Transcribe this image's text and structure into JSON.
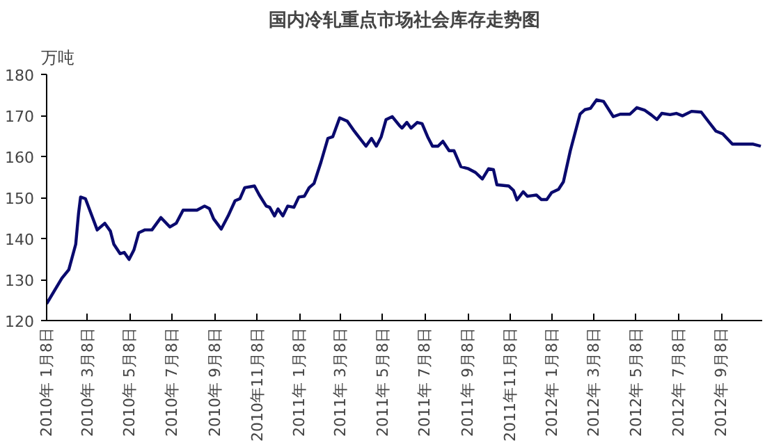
{
  "chart_data": {
    "type": "line",
    "title": "国内冷轧重点市场社会库存走势图",
    "ylabel": "万吨",
    "x": [
      "2010-01-08",
      "2010-01-30",
      "2010-02-09",
      "2010-02-19",
      "2010-02-23",
      "2010-02-26",
      "2010-03-05",
      "2010-03-16",
      "2010-03-22",
      "2010-04-02",
      "2010-04-10",
      "2010-04-15",
      "2010-04-24",
      "2010-04-30",
      "2010-05-07",
      "2010-05-14",
      "2010-05-21",
      "2010-05-30",
      "2010-06-09",
      "2010-06-22",
      "2010-07-05",
      "2010-07-14",
      "2010-07-24",
      "2010-08-13",
      "2010-08-24",
      "2010-08-31",
      "2010-09-06",
      "2010-09-17",
      "2010-09-27",
      "2010-10-07",
      "2010-10-14",
      "2010-10-21",
      "2010-11-04",
      "2010-11-11",
      "2010-11-21",
      "2010-11-26",
      "2010-12-03",
      "2010-12-08",
      "2010-12-15",
      "2010-12-22",
      "2010-12-31",
      "2011-01-07",
      "2011-01-15",
      "2011-01-22",
      "2011-01-29",
      "2011-02-08",
      "2011-02-18",
      "2011-02-25",
      "2011-03-07",
      "2011-03-18",
      "2011-03-28",
      "2011-04-14",
      "2011-04-22",
      "2011-04-29",
      "2011-05-06",
      "2011-05-13",
      "2011-05-22",
      "2011-06-01",
      "2011-06-05",
      "2011-06-12",
      "2011-06-18",
      "2011-06-27",
      "2011-07-04",
      "2011-07-12",
      "2011-07-19",
      "2011-07-27",
      "2011-08-03",
      "2011-08-12",
      "2011-08-19",
      "2011-08-29",
      "2011-09-09",
      "2011-09-19",
      "2011-09-29",
      "2011-10-08",
      "2011-10-15",
      "2011-10-20",
      "2011-11-06",
      "2011-11-13",
      "2011-11-18",
      "2011-11-27",
      "2011-12-03",
      "2011-12-16",
      "2011-12-23",
      "2011-12-31",
      "2012-01-07",
      "2012-01-17",
      "2012-01-24",
      "2012-02-03",
      "2012-02-17",
      "2012-02-24",
      "2012-03-03",
      "2012-03-12",
      "2012-03-22",
      "2012-04-05",
      "2012-04-15",
      "2012-04-29",
      "2012-05-09",
      "2012-05-20",
      "2012-05-30",
      "2012-06-07",
      "2012-06-14",
      "2012-06-26",
      "2012-07-05",
      "2012-07-14",
      "2012-07-27",
      "2012-08-10",
      "2012-08-20",
      "2012-08-31",
      "2012-09-10",
      "2012-09-24",
      "2012-10-24",
      "2012-11-04"
    ],
    "series": [
      {
        "color": "#0a0a6e",
        "values": [
          124.1,
          130.3,
          132.4,
          138.6,
          146.0,
          150.1,
          149.7,
          144.8,
          142.1,
          143.7,
          141.8,
          138.6,
          136.3,
          136.6,
          134.9,
          137.2,
          141.4,
          142.1,
          142.1,
          145.1,
          142.8,
          143.7,
          146.9,
          146.9,
          147.9,
          147.3,
          144.8,
          142.3,
          145.5,
          149.2,
          149.7,
          152.4,
          152.8,
          150.6,
          147.9,
          147.6,
          145.5,
          147.2,
          145.5,
          147.9,
          147.6,
          150.1,
          150.3,
          152.4,
          153.4,
          158.6,
          164.4,
          164.8,
          169.4,
          168.6,
          166.2,
          162.5,
          164.4,
          162.5,
          164.8,
          169.0,
          169.7,
          167.6,
          166.9,
          168.3,
          166.9,
          168.3,
          168.0,
          164.8,
          162.5,
          162.5,
          163.7,
          161.4,
          161.4,
          157.5,
          157.0,
          156.1,
          154.5,
          157.0,
          156.8,
          153.1,
          152.8,
          151.7,
          149.4,
          151.4,
          150.3,
          150.6,
          149.5,
          149.5,
          151.2,
          152.0,
          153.8,
          161.4,
          170.3,
          171.4,
          171.7,
          173.8,
          173.4,
          169.7,
          170.3,
          170.3,
          171.9,
          171.3,
          170.1,
          169.0,
          170.5,
          170.2,
          170.5,
          169.9,
          171.0,
          170.8,
          168.6,
          166.2,
          165.5,
          163.0,
          163.0,
          162.5
        ]
      }
    ],
    "xlim": [
      "2010-01-08",
      "2012-11-06"
    ],
    "xticks": [
      {
        "value": "2010-01-08",
        "label": "2010年 1月8日"
      },
      {
        "value": "2010-03-08",
        "label": "2010年 3月8日"
      },
      {
        "value": "2010-05-08",
        "label": "2010年 5月8日"
      },
      {
        "value": "2010-07-08",
        "label": "2010年 7月8日"
      },
      {
        "value": "2010-09-08",
        "label": "2010年 9月8日"
      },
      {
        "value": "2010-11-08",
        "label": "2010年11月8日"
      },
      {
        "value": "2011-01-08",
        "label": "2011年 1月8日"
      },
      {
        "value": "2011-03-08",
        "label": "2011年 3月8日"
      },
      {
        "value": "2011-05-08",
        "label": "2011年 5月8日"
      },
      {
        "value": "2011-07-08",
        "label": "2011年 7月8日"
      },
      {
        "value": "2011-09-08",
        "label": "2011年 9月8日"
      },
      {
        "value": "2011-11-08",
        "label": "2011年11月8日"
      },
      {
        "value": "2012-01-08",
        "label": "2012年 1月8日"
      },
      {
        "value": "2012-03-08",
        "label": "2012年 3月8日"
      },
      {
        "value": "2012-05-08",
        "label": "2012年 5月8日"
      },
      {
        "value": "2012-07-08",
        "label": "2012年 7月8日"
      },
      {
        "value": "2012-09-08",
        "label": "2012年 9月8日"
      }
    ],
    "ylim": [
      120,
      180
    ],
    "yticks": [
      120,
      130,
      140,
      150,
      160,
      170,
      180
    ],
    "grid": false,
    "marker": "none",
    "line_style": "solid"
  }
}
